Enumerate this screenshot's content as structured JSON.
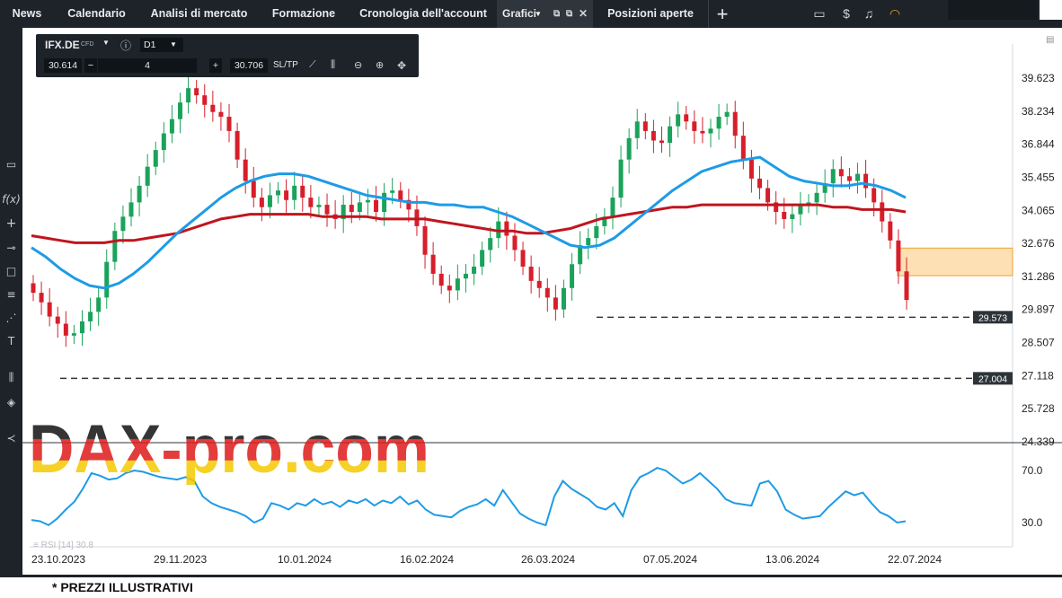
{
  "nav": {
    "tabs": [
      {
        "label": "News"
      },
      {
        "label": "Calendario"
      },
      {
        "label": "Analisi di mercato"
      },
      {
        "label": "Formazione"
      },
      {
        "label": "Cronologia dell'account"
      },
      {
        "label": "Grafici"
      },
      {
        "label": "Posizioni aperte"
      }
    ],
    "add_icon": "plus-icon"
  },
  "toolbar": {
    "symbol": "IFX.DE",
    "symbol_type": "CFD",
    "timeframe": "D1",
    "bid": "30.614",
    "quantity": "4",
    "ask": "30.706",
    "sltp": "SL/TP"
  },
  "price_axis": [
    "39.623",
    "38.234",
    "36.844",
    "35.455",
    "34.065",
    "32.676",
    "31.286",
    "29.897",
    "28.507",
    "27.118",
    "25.728",
    "24.339"
  ],
  "levels": [
    {
      "label": "29.573",
      "value": 29.573
    },
    {
      "label": "27.004",
      "value": 27.004
    }
  ],
  "rsi": {
    "label": "RSI [14] 30.8",
    "axis": [
      "70.0",
      "30.0"
    ]
  },
  "time_axis": [
    "23.10.2023",
    "29.11.2023",
    "10.01.2024",
    "16.02.2024",
    "26.03.2024",
    "07.05.2024",
    "13.06.2024",
    "22.07.2024"
  ],
  "watermark": "DAX-pro.com",
  "footnote": "* PREZZI ILLUSTRATIVI",
  "colors": {
    "up": "#1aa35a",
    "down": "#d71e2a",
    "ma_fast": "#1e9be6",
    "ma_slow": "#c0151f",
    "zone": "#fde0b4"
  },
  "chart_data": {
    "type": "line",
    "title": "",
    "series": [
      {
        "values": [
          30.6,
          30.2,
          29.6,
          29.3,
          28.8,
          28.9,
          29.4,
          29.8,
          30.4,
          31.9,
          33.2,
          33.8,
          34.4,
          35.1,
          35.9,
          36.6,
          37.3,
          37.9,
          38.6,
          39.2,
          38.9,
          38.5,
          38.2,
          38.0,
          37.4,
          36.2,
          35.3,
          34.6,
          34.2,
          34.7,
          34.9,
          34.5,
          35.1,
          34.6,
          34.2,
          34.3,
          33.9,
          33.7,
          34.3,
          34.0,
          34.4,
          34.5,
          34.0,
          34.8,
          34.9,
          34.5,
          34.1,
          33.4,
          32.2,
          31.4,
          30.9,
          30.7,
          31.2,
          31.4,
          31.7,
          32.4,
          32.9,
          33.6,
          33.0,
          32.4,
          31.7,
          31.1,
          30.8,
          30.4,
          29.9,
          30.8,
          31.8,
          32.6,
          32.9,
          33.4,
          33.8,
          34.6,
          36.2,
          37.1,
          37.8,
          37.4,
          37.0,
          36.9,
          37.6,
          38.1,
          37.8,
          37.4,
          37.3,
          37.5,
          38.0,
          38.2,
          37.2,
          36.2,
          35.4,
          35.0,
          34.4,
          34.0,
          33.7,
          33.9,
          34.3,
          34.4,
          34.8,
          35.2,
          35.8,
          35.5,
          35.3,
          35.6,
          35.0,
          34.4,
          33.6,
          32.8,
          31.5,
          30.3
        ]
      }
    ],
    "moving_averages": [
      {
        "values": [
          32.5,
          32.1,
          31.6,
          31.2,
          30.9,
          30.8,
          31.0,
          31.4,
          31.9,
          32.5,
          33.1,
          33.6,
          34.1,
          34.6,
          35.0,
          35.3,
          35.5,
          35.6,
          35.6,
          35.5,
          35.3,
          35.1,
          34.9,
          34.7,
          34.6,
          34.5,
          34.4,
          34.4,
          34.3,
          34.3,
          34.2,
          34.2,
          34.0,
          33.8,
          33.5,
          33.2,
          32.9,
          32.6,
          32.5,
          32.6,
          32.9,
          33.4,
          33.9,
          34.4,
          34.9,
          35.3,
          35.7,
          35.9,
          36.1,
          36.2,
          36.3,
          35.9,
          35.5,
          35.3,
          35.2,
          35.1,
          35.1,
          35.2,
          35.1,
          34.9,
          34.6
        ]
      },
      {
        "values": [
          33.0,
          32.9,
          32.8,
          32.7,
          32.7,
          32.7,
          32.8,
          32.8,
          32.9,
          33.0,
          33.1,
          33.3,
          33.5,
          33.7,
          33.8,
          33.9,
          33.9,
          33.9,
          33.9,
          33.9,
          33.8,
          33.8,
          33.8,
          33.8,
          33.7,
          33.7,
          33.7,
          33.7,
          33.6,
          33.5,
          33.4,
          33.3,
          33.2,
          33.2,
          33.1,
          33.1,
          33.2,
          33.3,
          33.5,
          33.7,
          33.8,
          33.9,
          34.0,
          34.1,
          34.2,
          34.2,
          34.3,
          34.3,
          34.3,
          34.3,
          34.3,
          34.3,
          34.3,
          34.3,
          34.3,
          34.2,
          34.2,
          34.1,
          34.1,
          34.1,
          34.0
        ]
      }
    ],
    "rsi_values": [
      32,
      31,
      28,
      33,
      40,
      46,
      56,
      68,
      66,
      63,
      64,
      68,
      70,
      69,
      67,
      65,
      64,
      63,
      65,
      62,
      50,
      45,
      42,
      40,
      38,
      35,
      30,
      33,
      45,
      43,
      40,
      45,
      43,
      48,
      44,
      46,
      42,
      47,
      45,
      48,
      43,
      47,
      45,
      50,
      44,
      47,
      40,
      36,
      35,
      34,
      39,
      42,
      44,
      48,
      43,
      55,
      46,
      37,
      33,
      30,
      28,
      50,
      62,
      56,
      52,
      48,
      42,
      40,
      45,
      35,
      55,
      65,
      68,
      72,
      70,
      65,
      60,
      63,
      68,
      62,
      56,
      48,
      45,
      44,
      43,
      60,
      62,
      54,
      40,
      36,
      33,
      34,
      35,
      42,
      48,
      54,
      51,
      53,
      45,
      38,
      35,
      30,
      31
    ]
  }
}
